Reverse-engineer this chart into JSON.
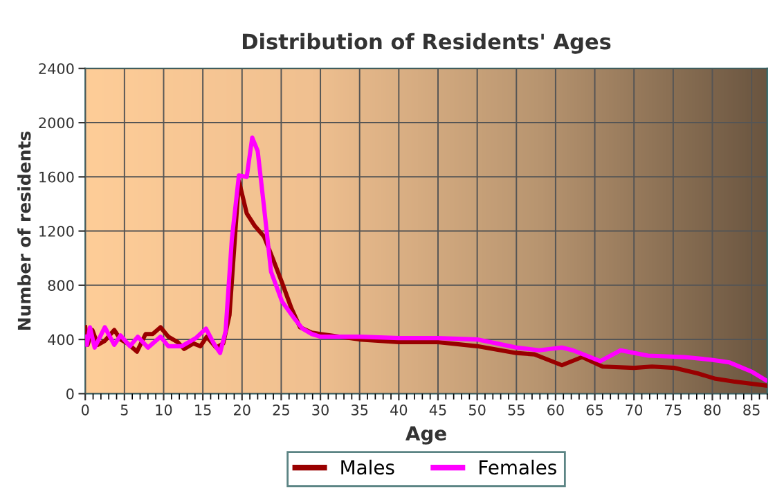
{
  "chart_data": {
    "type": "line",
    "title": "Distribution of Residents' Ages",
    "xlabel": "Age",
    "ylabel": "Number of residents",
    "xlim": [
      0,
      87
    ],
    "xticks": [
      0,
      5,
      10,
      15,
      20,
      25,
      30,
      35,
      40,
      45,
      50,
      55,
      60,
      65,
      70,
      75,
      80,
      85
    ],
    "ylim": [
      0,
      2400
    ],
    "yticks": [
      0,
      400,
      800,
      1200,
      1600,
      2000,
      2400
    ],
    "grid": true,
    "legend": "bottom",
    "marker": "none",
    "line_style": "solid",
    "series": [
      {
        "name": "Males",
        "color": "#990000",
        "x": [
          0,
          0.3,
          0.9,
          1.6,
          2.5,
          3.7,
          4.5,
          5.4,
          6.6,
          7.7,
          8.6,
          9.6,
          10.6,
          11.8,
          12.6,
          13.8,
          14.7,
          15.5,
          16.7,
          17.6,
          18.4,
          19.6,
          20.6,
          21.6,
          22.8,
          23.9,
          25.1,
          26.3,
          27.4,
          28.9,
          30,
          35,
          40,
          45,
          50,
          55,
          57.3,
          60.8,
          63.4,
          66,
          70,
          72.3,
          75.2,
          78.1,
          80.4,
          82.7,
          86.8
        ],
        "values": [
          490,
          360,
          470,
          360,
          390,
          470,
          400,
          370,
          310,
          440,
          440,
          490,
          420,
          380,
          330,
          370,
          350,
          420,
          340,
          370,
          580,
          1570,
          1330,
          1240,
          1160,
          1000,
          820,
          630,
          490,
          450,
          440,
          400,
          380,
          380,
          350,
          300,
          290,
          210,
          270,
          200,
          190,
          200,
          190,
          150,
          110,
          90,
          60
        ]
      },
      {
        "name": "Females",
        "color": "#ff00ff",
        "x": [
          0,
          0.2,
          0.6,
          1.2,
          2.5,
          3.7,
          4.5,
          5.7,
          6.7,
          8,
          9.6,
          10.6,
          12.3,
          14.1,
          15.4,
          16.4,
          17.2,
          17.9,
          18.7,
          19.6,
          20.6,
          21.3,
          22,
          22.8,
          23.7,
          25.1,
          26.6,
          27.7,
          28.9,
          30,
          35,
          40,
          45,
          50,
          55,
          57.9,
          60.8,
          62.2,
          65.7,
          68.3,
          71.8,
          76.4,
          79.9,
          82.2,
          85.1,
          86.8
        ],
        "values": [
          420,
          360,
          490,
          340,
          490,
          360,
          430,
          350,
          420,
          340,
          420,
          350,
          350,
          410,
          480,
          370,
          300,
          460,
          1140,
          1610,
          1600,
          1890,
          1790,
          1380,
          900,
          680,
          560,
          480,
          440,
          420,
          420,
          410,
          410,
          400,
          340,
          320,
          340,
          320,
          240,
          320,
          280,
          270,
          250,
          230,
          160,
          100
        ]
      }
    ]
  }
}
